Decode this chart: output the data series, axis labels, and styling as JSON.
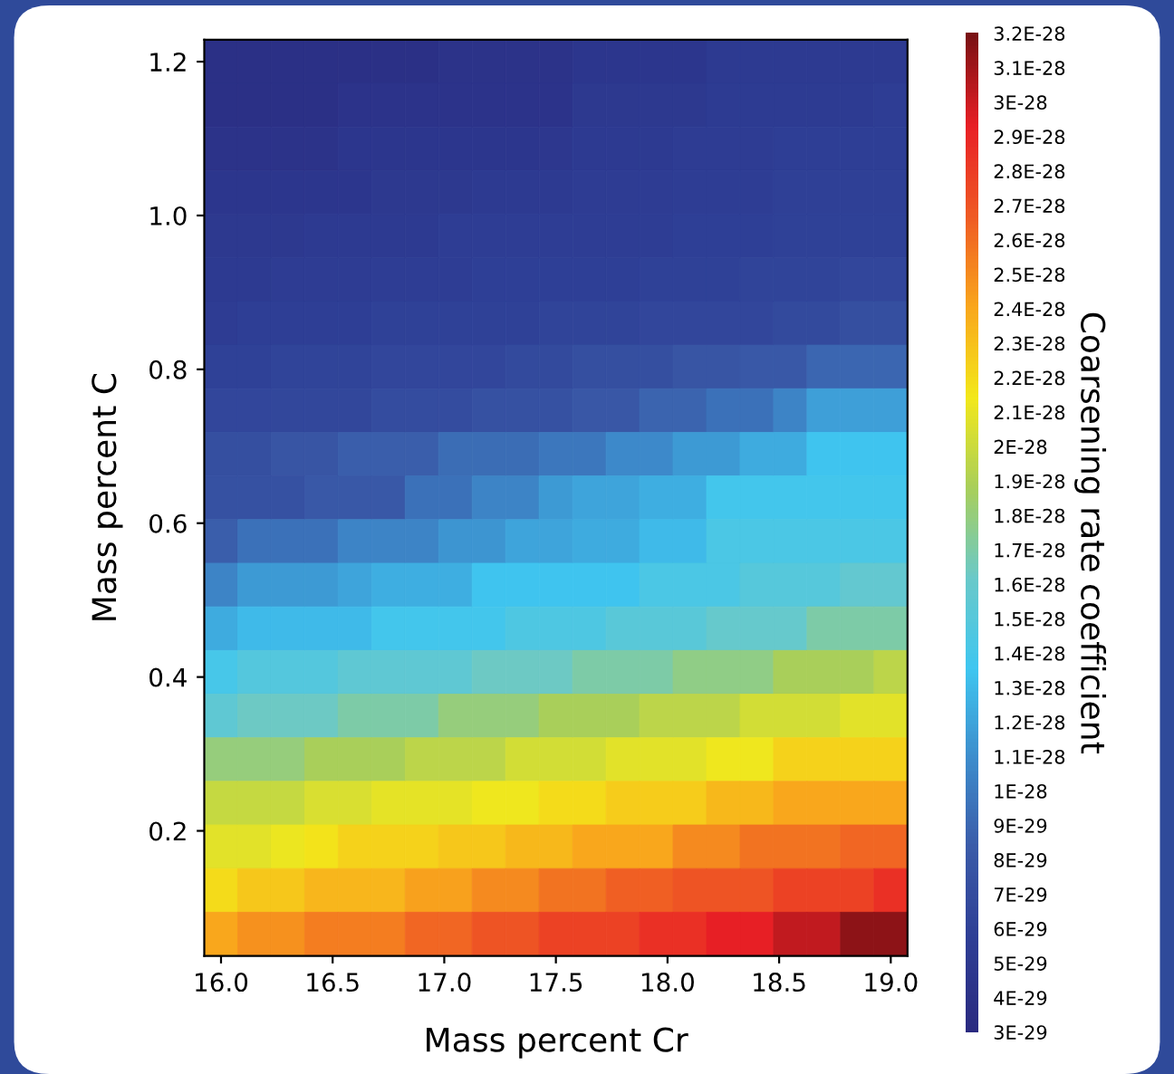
{
  "chart_data": {
    "type": "heatmap",
    "xlabel": "Mass percent Cr",
    "ylabel": "Mass percent C",
    "clabel": "Coarsening rate coefficient",
    "xlim": [
      15.925,
      19.075
    ],
    "ylim": [
      0.0375,
      1.2285
    ],
    "xticks": [
      {
        "value": 16,
        "label": "16.0"
      },
      16.5,
      {
        "value": 17,
        "label": "17.0"
      },
      17.5,
      {
        "value": 18,
        "label": "18.0"
      },
      18.5,
      {
        "value": 19,
        "label": "19.0"
      }
    ],
    "yticks": [
      0.2,
      0.4,
      0.6,
      0.8,
      {
        "value": 1,
        "label": "1.0"
      },
      1.2
    ],
    "colors": [
      "#2a2a80",
      "#2e3e95",
      "#3a5aa8",
      "#3d8ccc",
      "#3fc6f0",
      "#6ac9c9",
      "#a9cf5a",
      "#f3e81a",
      "#f9a61c",
      "#ef5a24",
      "#e81f25",
      "#7a1114"
    ],
    "clim": [
      3e-29,
      3.2e-28
    ],
    "cticks": [
      {
        "value": 3e-29,
        "label": "3E-29"
      },
      {
        "value": 4e-29,
        "label": "4E-29"
      },
      {
        "value": 5e-29,
        "label": "5E-29"
      },
      {
        "value": 6e-29,
        "label": "6E-29"
      },
      {
        "value": 7e-29,
        "label": "7E-29"
      },
      {
        "value": 8e-29,
        "label": "8E-29"
      },
      {
        "value": 9e-29,
        "label": "9E-29"
      },
      {
        "value": 1e-28,
        "label": "1E-28"
      },
      {
        "value": 1.1e-28,
        "label": "1.1E-28"
      },
      {
        "value": 1.2e-28,
        "label": "1.2E-28"
      },
      {
        "value": 1.3e-28,
        "label": "1.3E-28"
      },
      {
        "value": 1.4e-28,
        "label": "1.4E-28"
      },
      {
        "value": 1.5e-28,
        "label": "1.5E-28"
      },
      {
        "value": 1.6e-28,
        "label": "1.6E-28"
      },
      {
        "value": 1.7e-28,
        "label": "1.7E-28"
      },
      {
        "value": 1.8e-28,
        "label": "1.8E-28"
      },
      {
        "value": 1.9e-28,
        "label": "1.9E-28"
      },
      {
        "value": 2e-28,
        "label": "2E-28"
      },
      {
        "value": 2.1e-28,
        "label": "2.1E-28"
      },
      {
        "value": 2.2e-28,
        "label": "2.2E-28"
      },
      {
        "value": 2.3e-28,
        "label": "2.3E-28"
      },
      {
        "value": 2.4e-28,
        "label": "2.4E-28"
      },
      {
        "value": 2.5e-28,
        "label": "2.5E-28"
      },
      {
        "value": 2.6e-28,
        "label": "2.6E-28"
      },
      {
        "value": 2.7e-28,
        "label": "2.7E-28"
      },
      {
        "value": 2.8e-28,
        "label": "2.8E-28"
      },
      {
        "value": 2.9e-28,
        "label": "2.9E-28"
      },
      {
        "value": 3e-28,
        "label": "3E-28"
      },
      {
        "value": 3.1e-28,
        "label": "3.1E-28"
      },
      {
        "value": 3.2e-28,
        "label": "3.2E-28"
      }
    ],
    "cells": [
      [
        3.8e-29,
        3.8e-29,
        3.8e-29,
        3.8e-29,
        3.8e-29,
        3.8e-29,
        3.8e-29,
        4.2e-29,
        4.2e-29,
        4.2e-29,
        4.2e-29,
        4.6e-29,
        4.6e-29,
        4.6e-29,
        4.6e-29,
        5.2e-29,
        5.2e-29,
        5.2e-29,
        5.2e-29,
        5.2e-29,
        5.2e-29
      ],
      [
        3.8e-29,
        3.8e-29,
        3.8e-29,
        3.8e-29,
        4.3e-29,
        4.3e-29,
        4.3e-29,
        4.3e-29,
        4.3e-29,
        4.3e-29,
        4.3e-29,
        5e-29,
        5e-29,
        5e-29,
        5e-29,
        5.3e-29,
        5.3e-29,
        5.3e-29,
        5.3e-29,
        5.3e-29,
        5.6e-29
      ],
      [
        4.2e-29,
        4.2e-29,
        4.2e-29,
        4.2e-29,
        4.6e-29,
        4.6e-29,
        4.6e-29,
        4.6e-29,
        4.6e-29,
        4.6e-29,
        4.8e-29,
        5.2e-29,
        5.2e-29,
        5.2e-29,
        5.4e-29,
        5.4e-29,
        5.4e-29,
        5.7e-29,
        5.7e-29,
        5.7e-29,
        5.7e-29
      ],
      [
        4.6e-29,
        4.6e-29,
        4.6e-29,
        4.6e-29,
        4.6e-29,
        5e-29,
        5e-29,
        5e-29,
        5.2e-29,
        5.2e-29,
        5.2e-29,
        5.4e-29,
        5.4e-29,
        5.4e-29,
        5.6e-29,
        5.6e-29,
        5.6e-29,
        5.9e-29,
        5.9e-29,
        5.9e-29,
        5.9e-29
      ],
      [
        5e-29,
        5e-29,
        5e-29,
        5.2e-29,
        5.2e-29,
        5.2e-29,
        5.2e-29,
        5.5e-29,
        5.5e-29,
        5.5e-29,
        5.5e-29,
        5.6e-29,
        5.6e-29,
        5.6e-29,
        5.8e-29,
        5.8e-29,
        5.8e-29,
        6e-29,
        6e-29,
        6e-29,
        6e-29
      ],
      [
        5.2e-29,
        5.2e-29,
        5.4e-29,
        5.4e-29,
        5.4e-29,
        5.6e-29,
        5.6e-29,
        5.6e-29,
        5.8e-29,
        5.8e-29,
        5.8e-29,
        5.8e-29,
        5.8e-29,
        6e-29,
        6e-29,
        6e-29,
        6.2e-29,
        6.2e-29,
        6.2e-29,
        6.4e-29,
        6.4e-29
      ],
      [
        5.4e-29,
        5.7e-29,
        5.7e-29,
        5.7e-29,
        5.7e-29,
        6e-29,
        6e-29,
        6e-29,
        6e-29,
        6e-29,
        6.2e-29,
        6.2e-29,
        6.2e-29,
        6.4e-29,
        6.4e-29,
        6.4e-29,
        6.4e-29,
        6.8e-29,
        6.8e-29,
        7.2e-29,
        7.2e-29
      ],
      [
        6e-29,
        6e-29,
        6.2e-29,
        6.2e-29,
        6.2e-29,
        6.5e-29,
        6.5e-29,
        6.5e-29,
        6.5e-29,
        6.8e-29,
        6.8e-29,
        7.2e-29,
        7.2e-29,
        7.2e-29,
        7.8e-29,
        7.8e-29,
        8.2e-29,
        8.2e-29,
        9e-29,
        9e-29,
        9e-29
      ],
      [
        6.4e-29,
        6.4e-29,
        6.6e-29,
        6.6e-29,
        6.6e-29,
        7e-29,
        7e-29,
        7e-29,
        7.5e-29,
        7.5e-29,
        7.5e-29,
        8e-29,
        8e-29,
        8.8e-29,
        8.8e-29,
        9.5e-29,
        9.5e-29,
        1.05e-28,
        1.18e-28,
        1.18e-28,
        1.18e-28
      ],
      [
        7.2e-29,
        7.2e-29,
        7.8e-29,
        7.8e-29,
        8.5e-29,
        8.5e-29,
        8.5e-29,
        9.3e-29,
        9.3e-29,
        9.3e-29,
        9.8e-29,
        9.8e-29,
        1.08e-28,
        1.08e-28,
        1.16e-28,
        1.16e-28,
        1.23e-28,
        1.23e-28,
        1.35e-28,
        1.35e-28,
        1.35e-28
      ],
      [
        7.5e-29,
        7.5e-29,
        7.5e-29,
        8.2e-29,
        8.2e-29,
        8.2e-29,
        9.5e-29,
        9.5e-29,
        1.05e-28,
        1.05e-28,
        1.15e-28,
        1.2e-28,
        1.2e-28,
        1.25e-28,
        1.25e-28,
        1.38e-28,
        1.38e-28,
        1.38e-28,
        1.38e-28,
        1.38e-28,
        1.38e-28
      ],
      [
        8.5e-29,
        9.5e-29,
        9.5e-29,
        9.5e-29,
        1.05e-28,
        1.05e-28,
        1.05e-28,
        1.13e-28,
        1.13e-28,
        1.2e-28,
        1.2e-28,
        1.23e-28,
        1.23e-28,
        1.3e-28,
        1.3e-28,
        1.43e-28,
        1.43e-28,
        1.43e-28,
        1.43e-28,
        1.43e-28,
        1.43e-28
      ],
      [
        1.05e-28,
        1.15e-28,
        1.15e-28,
        1.15e-28,
        1.2e-28,
        1.25e-28,
        1.25e-28,
        1.25e-28,
        1.35e-28,
        1.35e-28,
        1.35e-28,
        1.35e-28,
        1.35e-28,
        1.43e-28,
        1.43e-28,
        1.43e-28,
        1.5e-28,
        1.5e-28,
        1.5e-28,
        1.58e-28,
        1.58e-28
      ],
      [
        1.23e-28,
        1.3e-28,
        1.3e-28,
        1.3e-28,
        1.3e-28,
        1.38e-28,
        1.38e-28,
        1.38e-28,
        1.38e-28,
        1.45e-28,
        1.45e-28,
        1.45e-28,
        1.52e-28,
        1.52e-28,
        1.52e-28,
        1.6e-28,
        1.6e-28,
        1.6e-28,
        1.7e-28,
        1.7e-28,
        1.7e-28
      ],
      [
        1.4e-28,
        1.48e-28,
        1.48e-28,
        1.48e-28,
        1.55e-28,
        1.55e-28,
        1.55e-28,
        1.55e-28,
        1.63e-28,
        1.63e-28,
        1.63e-28,
        1.7e-28,
        1.7e-28,
        1.7e-28,
        1.78e-28,
        1.78e-28,
        1.78e-28,
        1.88e-28,
        1.88e-28,
        1.88e-28,
        1.95e-28
      ],
      [
        1.55e-28,
        1.63e-28,
        1.63e-28,
        1.63e-28,
        1.7e-28,
        1.7e-28,
        1.7e-28,
        1.8e-28,
        1.8e-28,
        1.8e-28,
        1.88e-28,
        1.88e-28,
        1.88e-28,
        1.95e-28,
        1.95e-28,
        1.95e-28,
        2.03e-28,
        2.03e-28,
        2.03e-28,
        2.08e-28,
        2.08e-28
      ],
      [
        1.8e-28,
        1.8e-28,
        1.8e-28,
        1.88e-28,
        1.88e-28,
        1.88e-28,
        1.95e-28,
        1.95e-28,
        1.95e-28,
        2.03e-28,
        2.03e-28,
        2.03e-28,
        2.08e-28,
        2.08e-28,
        2.08e-28,
        2.13e-28,
        2.13e-28,
        2.23e-28,
        2.23e-28,
        2.23e-28,
        2.23e-28
      ],
      [
        1.98e-28,
        1.98e-28,
        1.98e-28,
        2.05e-28,
        2.05e-28,
        2.1e-28,
        2.1e-28,
        2.1e-28,
        2.13e-28,
        2.13e-28,
        2.2e-28,
        2.2e-28,
        2.25e-28,
        2.25e-28,
        2.25e-28,
        2.33e-28,
        2.33e-28,
        2.4e-28,
        2.4e-28,
        2.4e-28,
        2.4e-28
      ],
      [
        2.08e-28,
        2.08e-28,
        2.12e-28,
        2.16e-28,
        2.23e-28,
        2.23e-28,
        2.23e-28,
        2.28e-28,
        2.28e-28,
        2.33e-28,
        2.33e-28,
        2.4e-28,
        2.4e-28,
        2.4e-28,
        2.5e-28,
        2.5e-28,
        2.58e-28,
        2.58e-28,
        2.58e-28,
        2.63e-28,
        2.63e-28
      ],
      [
        2.2e-28,
        2.28e-28,
        2.28e-28,
        2.35e-28,
        2.35e-28,
        2.35e-28,
        2.42e-28,
        2.42e-28,
        2.5e-28,
        2.5e-28,
        2.58e-28,
        2.58e-28,
        2.65e-28,
        2.65e-28,
        2.7e-28,
        2.7e-28,
        2.7e-28,
        2.78e-28,
        2.78e-28,
        2.78e-28,
        2.85e-28
      ],
      [
        2.4e-28,
        2.48e-28,
        2.48e-28,
        2.55e-28,
        2.55e-28,
        2.55e-28,
        2.63e-28,
        2.63e-28,
        2.7e-28,
        2.7e-28,
        2.78e-28,
        2.78e-28,
        2.78e-28,
        2.85e-28,
        2.85e-28,
        2.93e-28,
        2.93e-28,
        3.03e-28,
        3.03e-28,
        3.15e-28,
        3.15e-28
      ]
    ]
  }
}
